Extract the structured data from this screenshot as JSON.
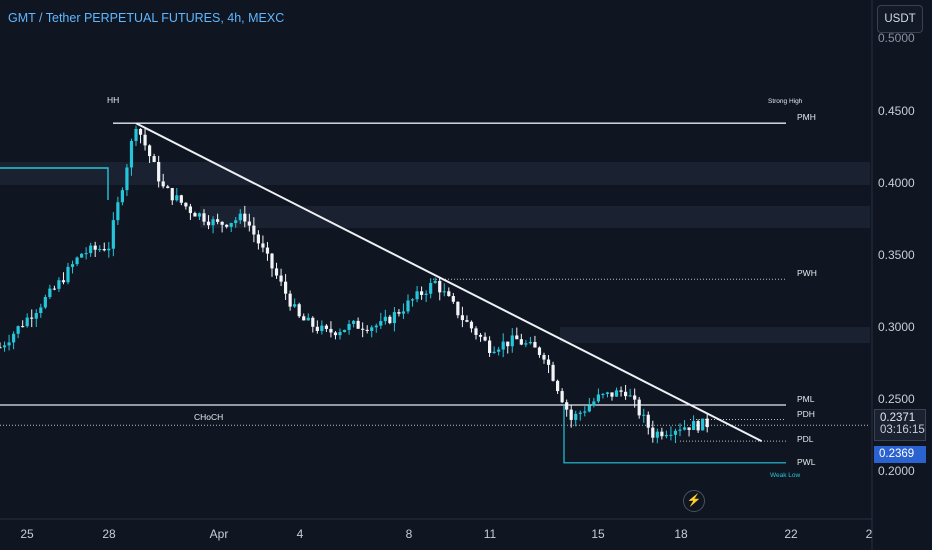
{
  "header": {
    "title": "GMT / Tether PERPETUAL FUTURES, 4h, MEXC",
    "currency_button": "USDT"
  },
  "price_axis": {
    "top_partial": "0.5000",
    "labels": [
      "0.4500",
      "0.4000",
      "0.3500",
      "0.3000",
      "0.2500",
      "0.2000"
    ]
  },
  "time_axis": {
    "labels": [
      "25",
      "28",
      "Apr",
      "4",
      "8",
      "11",
      "15",
      "18",
      "22",
      "2"
    ]
  },
  "badges": {
    "last_price": "0.2371",
    "countdown": "03:16:15",
    "current_price": "0.2369"
  },
  "annotations": {
    "hh": "HH",
    "strong_high": "Strong High",
    "pmh": "PMH",
    "pwh": "PWH",
    "pml": "PML",
    "pdh": "PDH",
    "pdl": "PDL",
    "pwl": "PWL",
    "weak_low": "Weak Low",
    "choch": "CHoCH"
  },
  "colors": {
    "background": "#0f1521",
    "accent": "#26c6da",
    "title": "#5fb7ff",
    "price_badge": "#2a62d0"
  },
  "icons": {
    "replay": "lightning-circle-icon"
  },
  "chart_data": {
    "type": "candlestick",
    "instrument": "GMT / Tether PERPETUAL FUTURES",
    "interval": "4h",
    "exchange": "MEXC",
    "x_labels": [
      "25",
      "28",
      "Apr",
      "4",
      "8",
      "11",
      "15",
      "18",
      "22",
      "2"
    ],
    "y_ticks": [
      0.45,
      0.4,
      0.35,
      0.3,
      0.25,
      0.2
    ],
    "series": [
      {
        "close_points": [
          [
            "Mar 23",
            0.29
          ],
          [
            "Mar 25",
            0.33
          ],
          [
            "Mar 26",
            0.355
          ],
          [
            "Mar 27",
            0.36
          ],
          [
            "Mar 28",
            0.445
          ],
          [
            "Mar 29",
            0.4
          ],
          [
            "Mar 30",
            0.385
          ],
          [
            "Mar 31",
            0.375
          ],
          [
            "Apr 1",
            0.38
          ],
          [
            "Apr 2",
            0.345
          ],
          [
            "Apr 3",
            0.31
          ],
          [
            "Apr 4",
            0.3
          ],
          [
            "Apr 5",
            0.305
          ],
          [
            "Apr 6",
            0.305
          ],
          [
            "Apr 7",
            0.32
          ],
          [
            "Apr 8",
            0.335
          ],
          [
            "Apr 9",
            0.31
          ],
          [
            "Apr 10",
            0.29
          ],
          [
            "Apr 11",
            0.295
          ],
          [
            "Apr 12",
            0.285
          ],
          [
            "Apr 13",
            0.24
          ],
          [
            "Apr 14",
            0.255
          ],
          [
            "Apr 15",
            0.26
          ],
          [
            "Apr 16",
            0.23
          ],
          [
            "Apr 17",
            0.235
          ],
          [
            "Apr 18",
            0.2369
          ]
        ]
      }
    ],
    "levels": [
      {
        "name": "PMH",
        "price": 0.445
      },
      {
        "name": "PWH",
        "price": 0.337
      },
      {
        "name": "PML",
        "price": 0.25
      },
      {
        "name": "PDH",
        "price": 0.24
      },
      {
        "name": "PDL",
        "price": 0.225
      },
      {
        "name": "PWL",
        "price": 0.21
      },
      {
        "name": "CHoCH",
        "price": 0.236
      }
    ],
    "trendline": {
      "from": [
        "Mar 28",
        0.445
      ],
      "to": [
        "Apr 20",
        0.225
      ]
    },
    "last_price": 0.2369
  }
}
